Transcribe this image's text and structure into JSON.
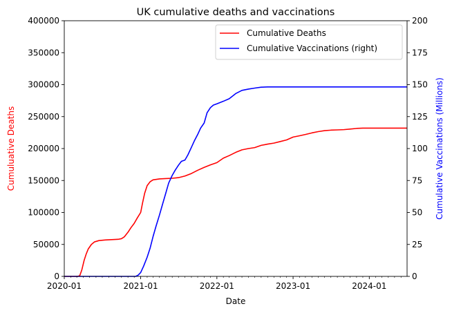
{
  "chart_data": {
    "type": "line",
    "title": "UK cumulative deaths and vaccinations",
    "xlabel": "Date",
    "ylabel_left": "Cumuluative Deaths",
    "ylabel_right": "Cumulative Vaccinations (Millions)",
    "x_ticks": [
      "2020-01",
      "2021-01",
      "2022-01",
      "2023-01",
      "2024-01"
    ],
    "x_range": [
      "2020-01-01",
      "2024-06-30"
    ],
    "ylim_left": [
      0,
      400000
    ],
    "ylim_right": [
      0,
      200
    ],
    "y_ticks_left": [
      "0",
      "50000",
      "100000",
      "150000",
      "200000",
      "250000",
      "300000",
      "350000",
      "400000"
    ],
    "y_ticks_right": [
      "0",
      "25",
      "50",
      "75",
      "100",
      "125",
      "150",
      "175",
      "200"
    ],
    "legend_position": "top-right",
    "grid": false,
    "colors": {
      "deaths": "#ff0000",
      "vaccinations": "#0000ff"
    },
    "series": [
      {
        "name": "Cumulative Deaths",
        "axis": "left",
        "color": "#ff0000",
        "points": [
          [
            "2020-01-01",
            0
          ],
          [
            "2020-03-05",
            0
          ],
          [
            "2020-03-15",
            1000
          ],
          [
            "2020-03-25",
            10000
          ],
          [
            "2020-04-05",
            25000
          ],
          [
            "2020-04-15",
            35000
          ],
          [
            "2020-04-25",
            43000
          ],
          [
            "2020-05-10",
            50000
          ],
          [
            "2020-05-25",
            54000
          ],
          [
            "2020-06-15",
            56000
          ],
          [
            "2020-07-15",
            57000
          ],
          [
            "2020-08-15",
            57500
          ],
          [
            "2020-09-15",
            58000
          ],
          [
            "2020-10-01",
            59000
          ],
          [
            "2020-10-15",
            62000
          ],
          [
            "2020-11-01",
            69000
          ],
          [
            "2020-11-15",
            76000
          ],
          [
            "2020-12-01",
            83000
          ],
          [
            "2020-12-15",
            91000
          ],
          [
            "2021-01-01",
            100000
          ],
          [
            "2021-01-10",
            115000
          ],
          [
            "2021-01-20",
            130000
          ],
          [
            "2021-02-01",
            142000
          ],
          [
            "2021-02-15",
            148000
          ],
          [
            "2021-03-01",
            151000
          ],
          [
            "2021-04-01",
            152500
          ],
          [
            "2021-05-01",
            153000
          ],
          [
            "2021-06-01",
            153500
          ],
          [
            "2021-07-01",
            154500
          ],
          [
            "2021-08-01",
            157000
          ],
          [
            "2021-09-01",
            161000
          ],
          [
            "2021-10-01",
            166000
          ],
          [
            "2021-11-01",
            170500
          ],
          [
            "2021-12-01",
            174500
          ],
          [
            "2022-01-01",
            178000
          ],
          [
            "2022-02-01",
            185000
          ],
          [
            "2022-03-01",
            189000
          ],
          [
            "2022-04-01",
            194000
          ],
          [
            "2022-05-01",
            198000
          ],
          [
            "2022-06-01",
            200000
          ],
          [
            "2022-07-01",
            201500
          ],
          [
            "2022-08-01",
            205000
          ],
          [
            "2022-09-01",
            207000
          ],
          [
            "2022-10-01",
            208500
          ],
          [
            "2022-11-01",
            211000
          ],
          [
            "2022-12-01",
            213500
          ],
          [
            "2023-01-01",
            218000
          ],
          [
            "2023-02-01",
            220000
          ],
          [
            "2023-03-01",
            222000
          ],
          [
            "2023-04-01",
            224500
          ],
          [
            "2023-05-01",
            226500
          ],
          [
            "2023-06-01",
            228000
          ],
          [
            "2023-07-01",
            228800
          ],
          [
            "2023-08-01",
            229200
          ],
          [
            "2023-09-01",
            229600
          ],
          [
            "2023-10-01",
            230500
          ],
          [
            "2023-11-01",
            231500
          ],
          [
            "2023-12-01",
            232000
          ],
          [
            "2024-06-30",
            232000
          ]
        ]
      },
      {
        "name": "Cumulative Vaccinations (right)",
        "axis": "right",
        "color": "#0000ff",
        "points": [
          [
            "2020-01-01",
            0
          ],
          [
            "2020-12-08",
            0
          ],
          [
            "2020-12-20",
            1
          ],
          [
            "2021-01-01",
            3
          ],
          [
            "2021-01-15",
            8
          ],
          [
            "2021-02-01",
            15
          ],
          [
            "2021-02-15",
            22
          ],
          [
            "2021-03-01",
            31
          ],
          [
            "2021-03-15",
            39
          ],
          [
            "2021-04-01",
            48
          ],
          [
            "2021-04-15",
            56
          ],
          [
            "2021-05-01",
            65
          ],
          [
            "2021-05-15",
            73
          ],
          [
            "2021-06-01",
            79
          ],
          [
            "2021-06-15",
            83
          ],
          [
            "2021-07-01",
            87
          ],
          [
            "2021-07-15",
            90
          ],
          [
            "2021-08-01",
            91
          ],
          [
            "2021-08-15",
            95
          ],
          [
            "2021-09-01",
            101
          ],
          [
            "2021-09-15",
            106
          ],
          [
            "2021-10-01",
            111
          ],
          [
            "2021-10-15",
            116
          ],
          [
            "2021-11-01",
            120
          ],
          [
            "2021-11-15",
            128
          ],
          [
            "2021-12-01",
            132
          ],
          [
            "2021-12-15",
            134
          ],
          [
            "2022-01-01",
            135
          ],
          [
            "2022-02-01",
            137
          ],
          [
            "2022-03-01",
            139
          ],
          [
            "2022-04-01",
            143
          ],
          [
            "2022-05-01",
            145.5
          ],
          [
            "2022-06-01",
            146.5
          ],
          [
            "2022-07-01",
            147.3
          ],
          [
            "2022-08-01",
            148
          ],
          [
            "2022-09-01",
            148.2
          ],
          [
            "2024-06-30",
            148.2
          ]
        ]
      }
    ]
  }
}
